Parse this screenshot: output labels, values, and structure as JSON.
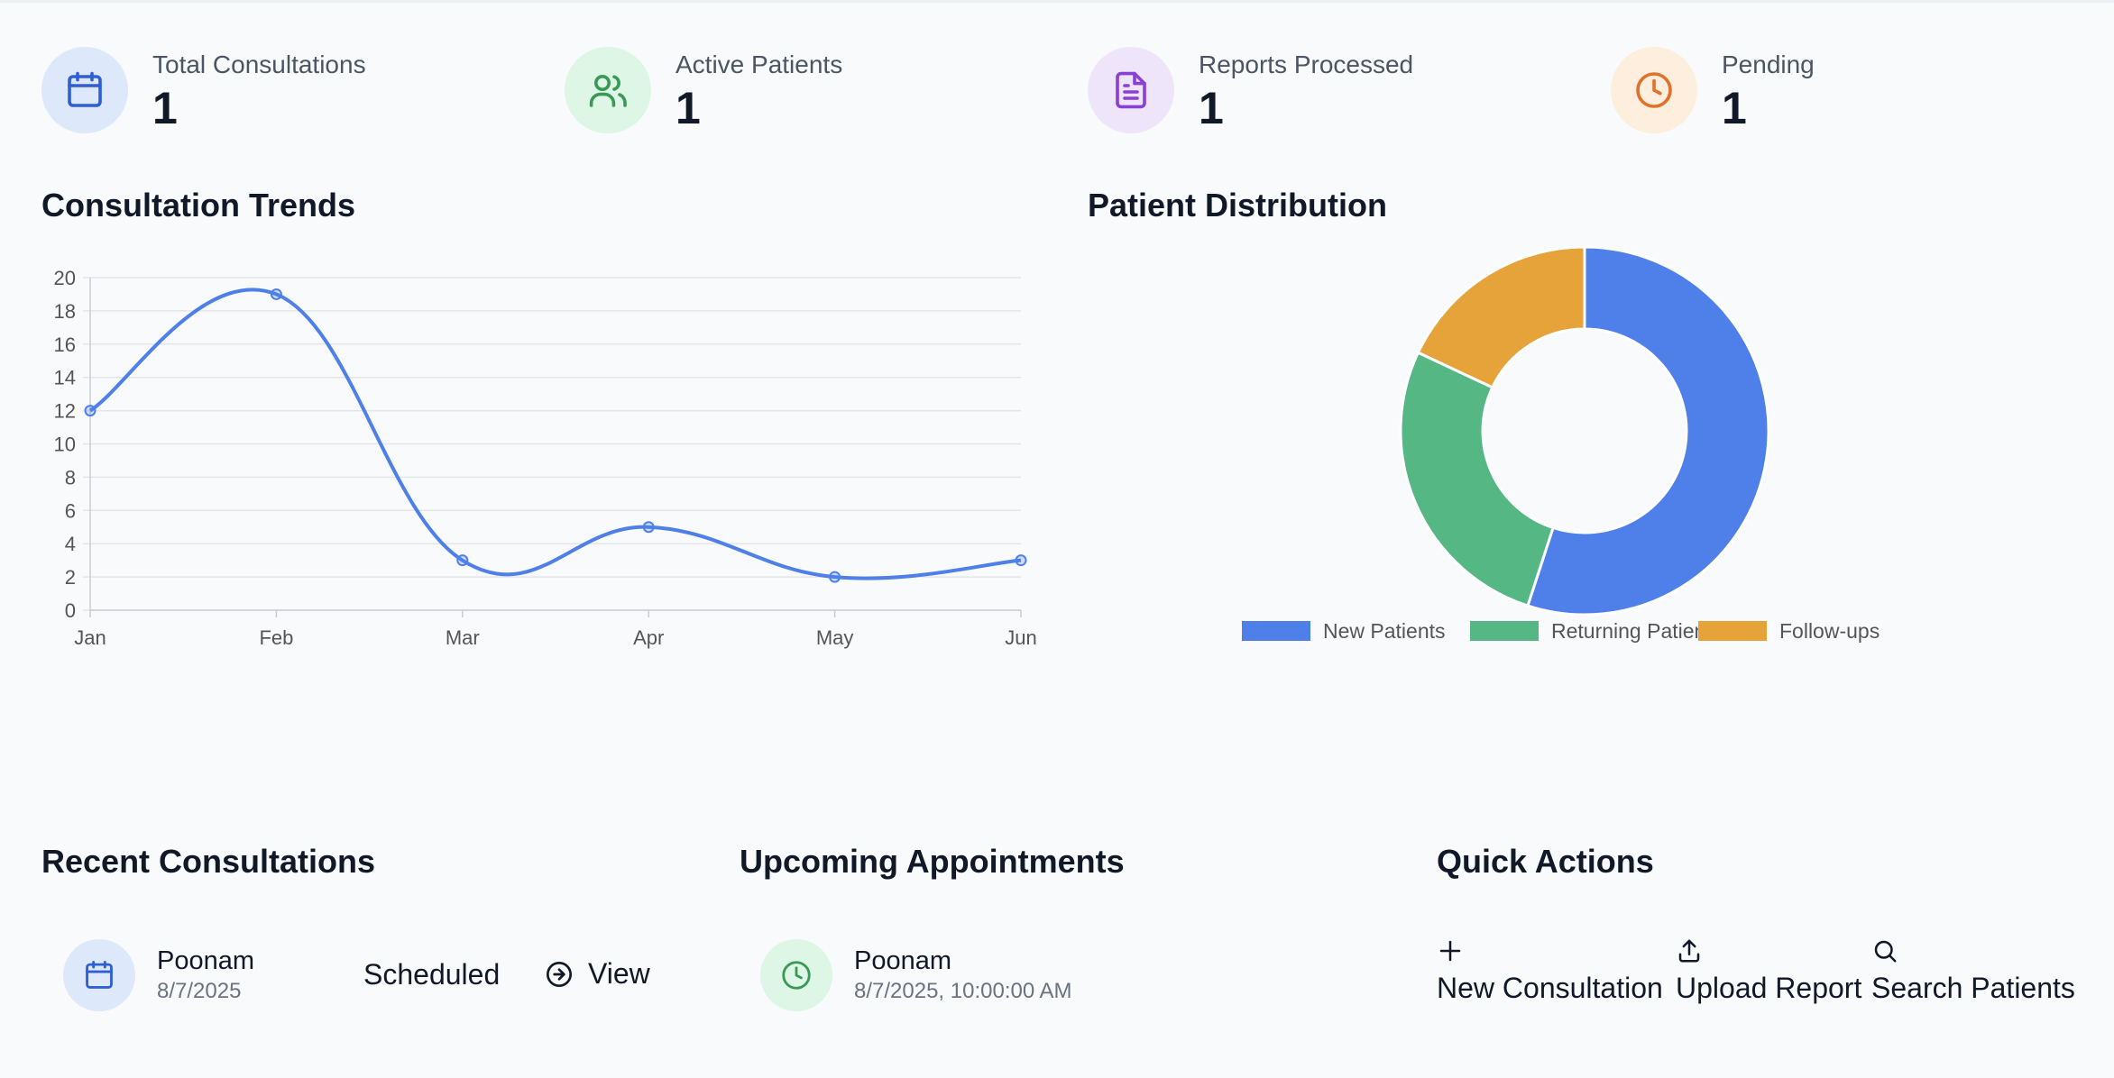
{
  "stats": [
    {
      "label": "Total Consultations",
      "value": "1",
      "icon": "calendar-icon",
      "bg": "#dde8fb",
      "fg": "#2f5fd6"
    },
    {
      "label": "Active Patients",
      "value": "1",
      "icon": "users-icon",
      "bg": "#ddf6e5",
      "fg": "#3a9a55"
    },
    {
      "label": "Reports Processed",
      "value": "1",
      "icon": "file-text-icon",
      "bg": "#eee5fb",
      "fg": "#8a3fd6"
    },
    {
      "label": "Pending",
      "value": "1",
      "icon": "clock-icon",
      "bg": "#fdeedd",
      "fg": "#e0702a"
    }
  ],
  "sections": {
    "consultation_trends": "Consultation Trends",
    "patient_distribution": "Patient Distribution",
    "recent_consultations": "Recent Consultations",
    "upcoming_appointments": "Upcoming Appointments",
    "quick_actions": "Quick Actions"
  },
  "recent": {
    "name": "Poonam",
    "date": "8/7/2025",
    "status": "Scheduled",
    "view_label": "View"
  },
  "upcoming": {
    "name": "Poonam",
    "datetime": "8/7/2025, 10:00:00 AM"
  },
  "quick_actions": [
    {
      "label": "New Consultation",
      "icon": "plus-icon"
    },
    {
      "label": "Upload Report",
      "icon": "upload-icon"
    },
    {
      "label": "Search Patients",
      "icon": "search-icon"
    }
  ],
  "colors": {
    "line": "#4f80ea",
    "grid": "#e3e5e8",
    "new": "#4f80ea",
    "returning": "#55b884",
    "followups": "#e6a33a"
  },
  "chart_data": [
    {
      "type": "line",
      "title": "Consultation Trends",
      "categories": [
        "Jan",
        "Feb",
        "Mar",
        "Apr",
        "May",
        "Jun"
      ],
      "values": [
        12,
        19,
        3,
        5,
        2,
        3
      ],
      "ylim": [
        0,
        20
      ],
      "yticks": [
        "0",
        "2",
        "4",
        "6",
        "8",
        "10",
        "12",
        "14",
        "16",
        "18",
        "20"
      ],
      "xlabel": "",
      "ylabel": "",
      "grid": true
    },
    {
      "type": "pie",
      "title": "Patient Distribution",
      "labels": [
        "New Patients",
        "Returning Patients",
        "Follow-ups"
      ],
      "values": [
        55,
        27,
        18
      ],
      "legend": "bottom"
    }
  ]
}
